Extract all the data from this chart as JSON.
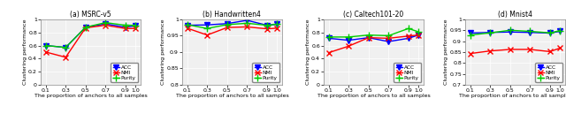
{
  "x": [
    0.1,
    0.3,
    0.5,
    0.7,
    0.9,
    1.0
  ],
  "subplots": [
    {
      "title": "(a) MSRC-v5",
      "ACC": [
        0.6,
        0.57,
        0.88,
        0.93,
        0.88,
        0.9
      ],
      "NMI": [
        0.5,
        0.42,
        0.87,
        0.91,
        0.86,
        0.86
      ],
      "Purity": [
        0.6,
        0.57,
        0.88,
        0.95,
        0.91,
        0.91
      ],
      "ylim": [
        0,
        1.0
      ],
      "yticks": [
        0,
        0.2,
        0.4,
        0.6,
        0.8,
        1.0
      ],
      "yticklabels": [
        "0",
        "0.2",
        "0.4",
        "0.6",
        "0.8",
        "1"
      ]
    },
    {
      "title": "(b) Handwritten4",
      "ACC": [
        0.982,
        0.983,
        0.987,
        0.997,
        0.982,
        0.985
      ],
      "NMI": [
        0.973,
        0.952,
        0.975,
        0.977,
        0.971,
        0.973
      ],
      "Purity": [
        0.984,
        0.972,
        0.984,
        0.988,
        0.982,
        0.985
      ],
      "ylim": [
        0.8,
        1.0
      ],
      "yticks": [
        0.8,
        0.85,
        0.9,
        0.95,
        1.0
      ],
      "yticklabels": [
        "0.8",
        "0.85",
        "0.9",
        "0.95",
        "1"
      ]
    },
    {
      "title": "(c) Caltech101-20",
      "ACC": [
        0.71,
        0.68,
        0.72,
        0.66,
        0.71,
        0.76
      ],
      "NMI": [
        0.49,
        0.59,
        0.72,
        0.71,
        0.745,
        0.76
      ],
      "Purity": [
        0.73,
        0.73,
        0.76,
        0.75,
        0.86,
        0.81
      ],
      "ylim": [
        0,
        1.0
      ],
      "yticks": [
        0,
        0.2,
        0.4,
        0.6,
        0.8,
        1.0
      ],
      "yticklabels": [
        "0",
        "0.2",
        "0.4",
        "0.6",
        "0.8",
        "1"
      ]
    },
    {
      "title": "(d) Mnist4",
      "ACC": [
        0.937,
        0.94,
        0.942,
        0.94,
        0.937,
        0.945
      ],
      "NMI": [
        0.843,
        0.855,
        0.862,
        0.862,
        0.852,
        0.868
      ],
      "Purity": [
        0.928,
        0.938,
        0.95,
        0.945,
        0.938,
        0.948
      ],
      "ylim": [
        0.7,
        1.0
      ],
      "yticks": [
        0.7,
        0.75,
        0.8,
        0.85,
        0.9,
        0.95,
        1.0
      ],
      "yticklabels": [
        "0.7",
        "0.75",
        "0.8",
        "0.85",
        "0.9",
        "0.95",
        "1"
      ]
    }
  ],
  "colors": {
    "ACC": "#0000FF",
    "NMI": "#FF0000",
    "Purity": "#00CC00"
  },
  "markers": {
    "ACC": "v",
    "NMI": "x",
    "Purity": "+"
  },
  "marker_sizes": {
    "ACC": 4.0,
    "NMI": 4.5,
    "Purity": 5.5
  },
  "xlabel": "The proportion of anchors to all samples",
  "ylabel": "Clustering performance",
  "bg_color": "#F0F0F0"
}
